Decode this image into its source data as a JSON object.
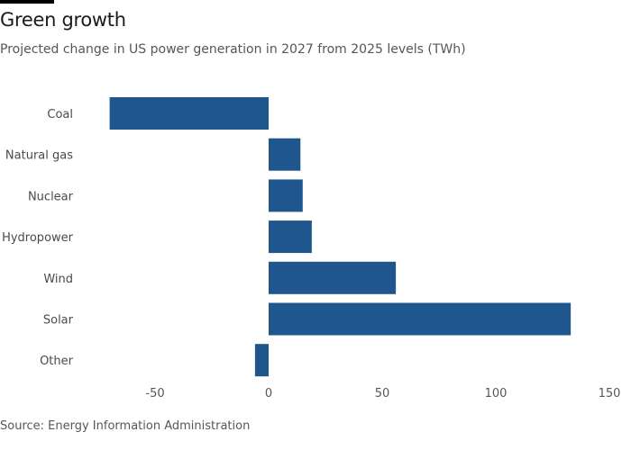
{
  "chart_data": {
    "type": "bar",
    "orientation": "horizontal",
    "title": "Green growth",
    "subtitle": "Projected change in US power generation in 2027 from 2025 levels (TWh)",
    "source": "Source: Energy Information Administration",
    "categories": [
      "Coal",
      "Natural gas",
      "Nuclear",
      "Hydropower",
      "Wind",
      "Solar",
      "Other"
    ],
    "values": [
      -70,
      14,
      15,
      19,
      56,
      133,
      -6
    ],
    "xlim": [
      -70,
      150
    ],
    "xticks": [
      -50,
      0,
      50,
      100,
      150
    ],
    "xtick_labels": [
      "-50",
      "0",
      "50",
      "100",
      "150"
    ],
    "xlabel": "",
    "ylabel": "",
    "grid": false,
    "bar_color": "#1f568d"
  }
}
